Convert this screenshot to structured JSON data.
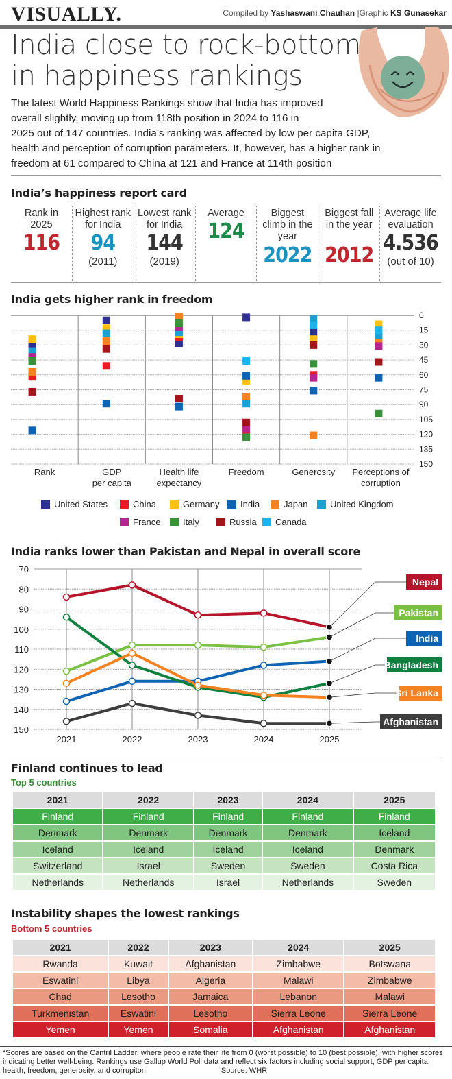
{
  "header": {
    "brand": "VISUALLY.",
    "compiled_prefix": "Compiled by ",
    "compiled_name": "Yashaswani Chauhan",
    "graphic_prefix": "  |Graphic ",
    "graphic_name": "KS Gunasekar",
    "headline_line1": "India close to rock-bottom",
    "headline_line2": "in happiness rankings",
    "photo": "smiley-face-in-hands-photo"
  },
  "intro": {
    "line1": "The latest World Happiness Rankings show that India has improved",
    "line2": "overall slightly, moving up from 118th position in 2024 to 116 in",
    "line3": "2025 out of 147 countries. India’s ranking was affected  by low per capita GDP,",
    "line4": "health and perception of corruption parameters. It, however, has a higher rank in",
    "line5": "freedom at 61 compared to China at 121 and France at 114th position"
  },
  "report_card": {
    "title": "India’s happiness report card",
    "items": [
      {
        "label": "Rank in 2025",
        "value": "116",
        "sub": "",
        "color": "#c0262d"
      },
      {
        "label": "Highest rank for India",
        "value": "94",
        "sub": "(2011)",
        "color": "#1b93c0"
      },
      {
        "label": "Lowest rank for India",
        "value": "144",
        "sub": "(2019)",
        "color": "#333333"
      },
      {
        "label": "Average",
        "value": "124",
        "sub": "",
        "color": "#1e8a4c"
      },
      {
        "label": "Biggest climb in the year",
        "value": "2022",
        "sub": "",
        "color": "#1b93c0"
      },
      {
        "label": "Biggest fall in the year",
        "value": "2012",
        "sub": "",
        "color": "#c0262d"
      },
      {
        "label": "Average life evaluation",
        "value": "4.536",
        "sub": "(out of 10)",
        "color": "#333333"
      }
    ]
  },
  "chart_data": [
    {
      "type": "scatter",
      "title": "India gets higher rank in freedom",
      "categories": [
        "Rank",
        "GDP\nper capita",
        "Health life\nexpectancy",
        "Freedom",
        "Generosity",
        "Perceptions of\ncorruption"
      ],
      "ylim": [
        0,
        150
      ],
      "yticks": [
        0,
        15,
        30,
        45,
        60,
        75,
        90,
        105,
        120,
        135,
        150
      ],
      "y_inverted": true,
      "grid": true,
      "legend_position": "bottom",
      "series": [
        {
          "name": "United States",
          "color": "#2e3192",
          "values": [
            29,
            5,
            28,
            2,
            17,
            null
          ]
        },
        {
          "name": "China",
          "color": "#ec1c24",
          "values": [
            62,
            51,
            22,
            121,
            60,
            null
          ]
        },
        {
          "name": "Germany",
          "color": "#fdc010",
          "values": [
            24,
            13,
            19,
            66,
            24,
            9
          ]
        },
        {
          "name": "India",
          "color": "#0e63b3",
          "values": [
            116,
            89,
            92,
            61,
            76,
            63
          ]
        },
        {
          "name": "Japan",
          "color": "#f58220",
          "values": [
            57,
            26,
            1,
            82,
            121,
            27
          ]
        },
        {
          "name": "United Kingdom",
          "color": "#1ba0d2",
          "values": [
            36,
            18,
            17,
            89,
            4,
            20
          ]
        },
        {
          "name": "France",
          "color": "#b5258f",
          "values": [
            42,
            null,
            12,
            114,
            63,
            31
          ]
        },
        {
          "name": "Italy",
          "color": "#39913a",
          "values": [
            46,
            null,
            8,
            123,
            49,
            99
          ]
        },
        {
          "name": "Russia",
          "color": "#a3141b",
          "values": [
            77,
            34,
            84,
            108,
            30,
            47
          ]
        },
        {
          "name": "Canada",
          "color": "#1cb4ec",
          "values": [
            null,
            null,
            null,
            46,
            10,
            15
          ]
        }
      ]
    },
    {
      "type": "line",
      "title": "India ranks lower than Pakistan and Nepal in overall score",
      "x": [
        "2021",
        "2022",
        "2023",
        "2024",
        "2025"
      ],
      "ylim": [
        70,
        150
      ],
      "yticks": [
        70,
        80,
        90,
        100,
        110,
        120,
        130,
        140,
        150
      ],
      "y_inverted": true,
      "grid": true,
      "legend_position": "right",
      "series": [
        {
          "name": "Nepal",
          "color": "#b5152b",
          "values": [
            84,
            78,
            93,
            92,
            99
          ]
        },
        {
          "name": "Pakistan",
          "color": "#7ac143",
          "values": [
            121,
            108,
            108,
            109,
            104
          ]
        },
        {
          "name": "India",
          "color": "#0e63b3",
          "values": [
            136,
            126,
            126,
            118,
            116
          ]
        },
        {
          "name": "Bangladesh",
          "color": "#0f8040",
          "values": [
            94,
            118,
            129,
            134,
            127
          ]
        },
        {
          "name": "Sri Lanka",
          "color": "#f58220",
          "values": [
            127,
            112,
            128,
            133,
            134
          ]
        },
        {
          "name": "Afghanistan",
          "color": "#3d3d3d",
          "values": [
            146,
            137,
            143,
            147,
            147
          ]
        }
      ]
    },
    {
      "type": "table",
      "title": "Finland continues to lead",
      "subtitle": "Top 5 countries",
      "columns": [
        "2021",
        "2022",
        "2023",
        "2024",
        "2025"
      ],
      "rows": [
        [
          "Finland",
          "Finland",
          "Finland",
          "Finland",
          "Finland"
        ],
        [
          "Denmark",
          "Denmark",
          "Denmark",
          "Denmark",
          "Iceland"
        ],
        [
          "Iceland",
          "Iceland",
          "Iceland",
          "Iceland",
          "Denmark"
        ],
        [
          "Switzerland",
          "Israel",
          "Sweden",
          "Sweden",
          "Costa Rica"
        ],
        [
          "Netherlands",
          "Netherlands",
          "Israel",
          "Netherlands",
          "Sweden"
        ]
      ],
      "row_colors": [
        "#3fae49",
        "#7fc47f",
        "#9fd29c",
        "#c5e3c1",
        "#e4f2e2"
      ],
      "row_text_colors": [
        "#ffffff",
        "#222222",
        "#222222",
        "#222222",
        "#222222"
      ]
    },
    {
      "type": "table",
      "title": "Instability shapes the lowest rankings",
      "subtitle": "Bottom 5 countries",
      "columns": [
        "2021",
        "2022",
        "2023",
        "2024",
        "2025"
      ],
      "rows": [
        [
          "Rwanda",
          "Kuwait",
          "Afghanistan",
          "Zimbabwe",
          "Botswana"
        ],
        [
          "Eswatini",
          "Libya",
          "Algeria",
          "Malawi",
          "Zimbabwe"
        ],
        [
          "Chad",
          "Lesotho",
          "Jamaica",
          "Lebanon",
          "Malawi"
        ],
        [
          "Turkmenistan",
          "Eswatini",
          "Lesotho",
          "Sierra Leone",
          "Sierra Leone"
        ],
        [
          "Yemen",
          "Yemen",
          "Somalia",
          "Afghanistan",
          "Afghanistan"
        ]
      ],
      "row_colors": [
        "#fbe3dc",
        "#f4bba9",
        "#eb9a82",
        "#e0705a",
        "#d0202c"
      ],
      "row_text_colors": [
        "#222222",
        "#222222",
        "#222222",
        "#222222",
        "#ffffff"
      ]
    }
  ],
  "footnote": {
    "text": "*Scores are based on the Cantril Ladder, where people rate their life from 0  (worst possible) to 10  (best possible), with higher scores indicating better well-being. Rankings use Gallup World Poll data and reflect six factors including social support, GDP per capita, health, freedom, generosity, and corrupiton",
    "source": "Source: WHR"
  }
}
